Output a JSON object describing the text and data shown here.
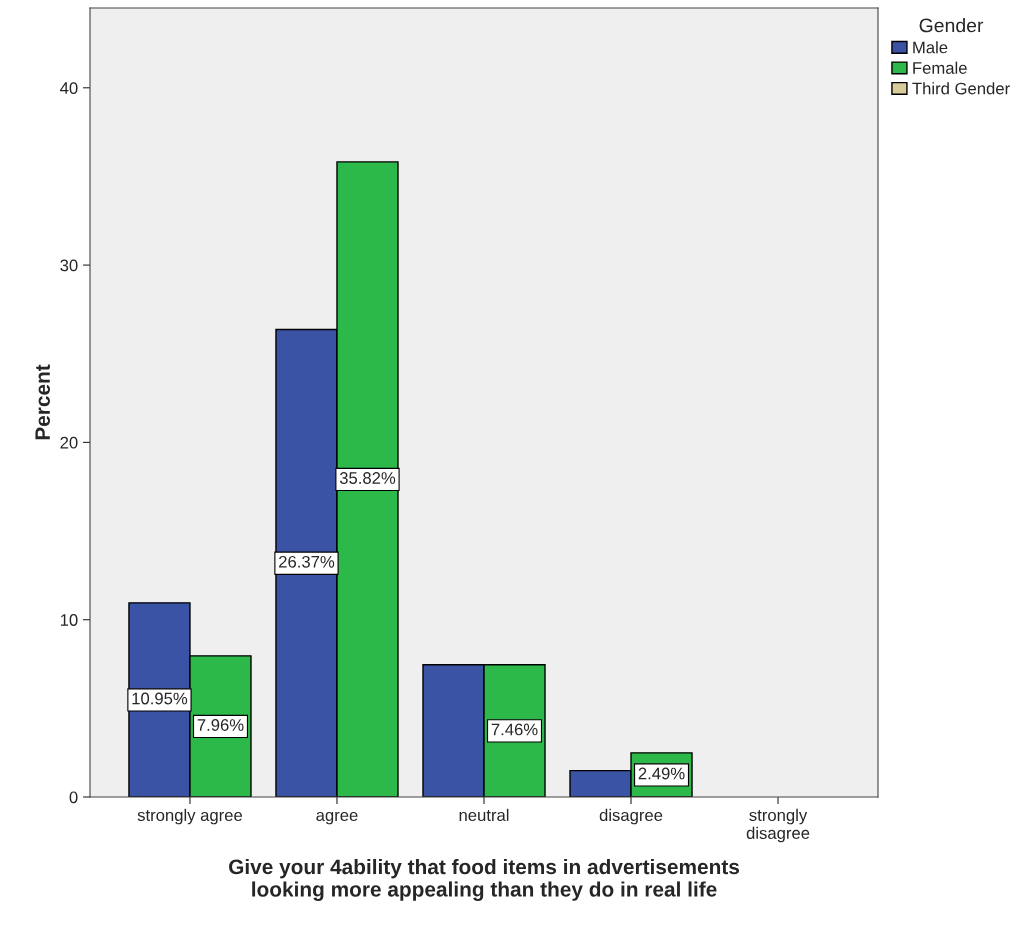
{
  "chart_data": {
    "type": "bar",
    "xlabel": "Give your 4ability that food items in advertisements\nlooking more appealing than they do in real life",
    "ylabel": "Percent",
    "legend_title": "Gender",
    "categories": [
      "strongly agree",
      "agree",
      "neutral",
      "disagree",
      "strongly\ndisagree"
    ],
    "series": [
      {
        "name": "Male",
        "color": "#3a53a4",
        "values": [
          10.95,
          26.37,
          7.46,
          1.49,
          null
        ],
        "value_labels": [
          "10.95%",
          "26.37%",
          null,
          null,
          null
        ]
      },
      {
        "name": "Female",
        "color": "#2db84a",
        "values": [
          7.96,
          35.82,
          7.46,
          2.49,
          null
        ],
        "value_labels": [
          "7.96%",
          "35.82%",
          "7.46%",
          "2.49%",
          null
        ]
      },
      {
        "name": "Third Gender",
        "color": "#d8cc9b",
        "values": [
          null,
          null,
          null,
          null,
          null
        ]
      }
    ],
    "ylim": [
      0,
      44.5
    ],
    "yticks": [
      0,
      10,
      20,
      30,
      40
    ],
    "grid": false,
    "legend": "top right"
  }
}
